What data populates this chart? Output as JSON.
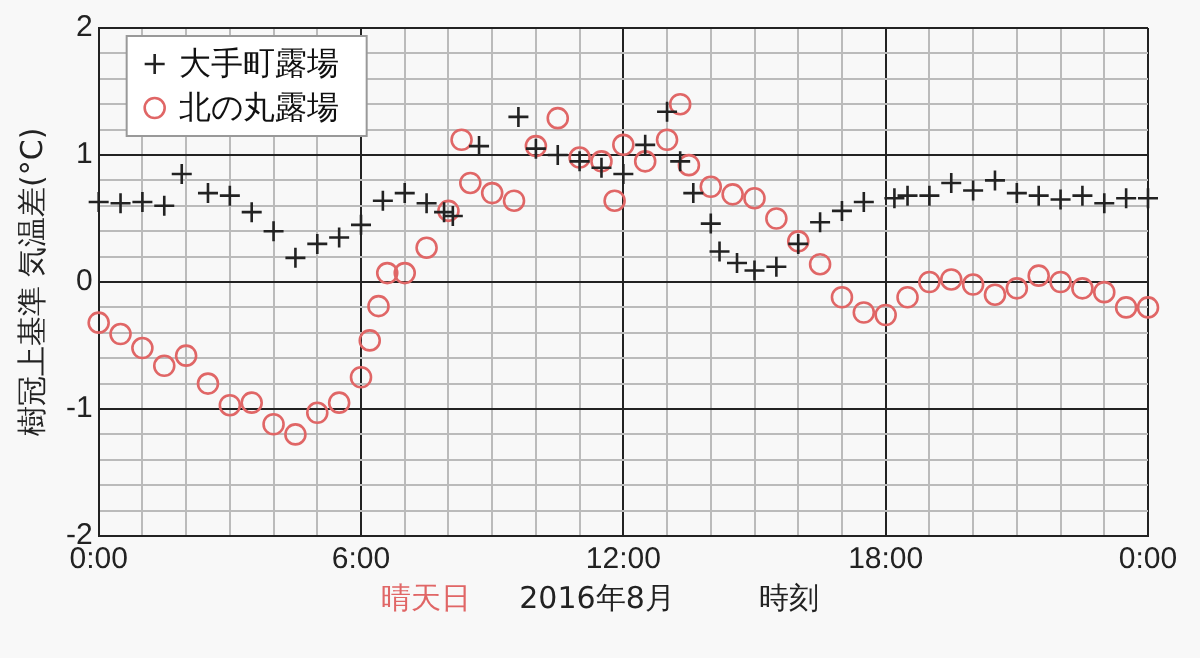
{
  "chart_data": {
    "type": "scatter",
    "ylabel": "樹冠上基準 気温差(°C)",
    "xlabel": "時刻",
    "annotations": [
      "晴天日",
      "2016年8月"
    ],
    "xlim": [
      0,
      24
    ],
    "ylim": [
      -2,
      2
    ],
    "xticks": [
      {
        "value": 0,
        "label": "0:00"
      },
      {
        "value": 1,
        "label": null
      },
      {
        "value": 2,
        "label": null
      },
      {
        "value": 3,
        "label": null
      },
      {
        "value": 4,
        "label": null
      },
      {
        "value": 5,
        "label": null
      },
      {
        "value": 6,
        "label": "6:00"
      },
      {
        "value": 7,
        "label": null
      },
      {
        "value": 8,
        "label": null
      },
      {
        "value": 9,
        "label": null
      },
      {
        "value": 10,
        "label": null
      },
      {
        "value": 11,
        "label": null
      },
      {
        "value": 12,
        "label": "12:00"
      },
      {
        "value": 13,
        "label": null
      },
      {
        "value": 14,
        "label": null
      },
      {
        "value": 15,
        "label": null
      },
      {
        "value": 16,
        "label": null
      },
      {
        "value": 17,
        "label": null
      },
      {
        "value": 18,
        "label": "18:00"
      },
      {
        "value": 19,
        "label": null
      },
      {
        "value": 20,
        "label": null
      },
      {
        "value": 21,
        "label": null
      },
      {
        "value": 22,
        "label": null
      },
      {
        "value": 23,
        "label": null
      },
      {
        "value": 24,
        "label": "0:00"
      }
    ],
    "yticks": [
      -2,
      {
        "value": -1.8,
        "label": null
      },
      {
        "value": -1.6,
        "label": null
      },
      {
        "value": -1.4,
        "label": null
      },
      {
        "value": -1.2,
        "label": null
      },
      -1,
      {
        "value": -0.8,
        "label": null
      },
      {
        "value": -0.6,
        "label": null
      },
      {
        "value": -0.4,
        "label": null
      },
      {
        "value": -0.2,
        "label": null
      },
      0,
      {
        "value": 0.2,
        "label": null
      },
      {
        "value": 0.4,
        "label": null
      },
      {
        "value": 0.6,
        "label": null
      },
      {
        "value": 0.8,
        "label": null
      },
      1,
      {
        "value": 1.2,
        "label": null
      },
      {
        "value": 1.4,
        "label": null
      },
      {
        "value": 1.6,
        "label": null
      },
      {
        "value": 1.8,
        "label": null
      },
      2
    ],
    "grid": true,
    "legend": "top left",
    "series": [
      {
        "name": "大手町露場",
        "color": "#222222",
        "marker": "cross",
        "x": [
          0,
          0.5,
          1,
          1.5,
          1.9,
          2.5,
          3,
          3.5,
          4,
          4.5,
          5,
          5.5,
          6,
          6.5,
          7,
          7.5,
          7.9,
          8.1,
          8.7,
          9.6,
          10,
          10.5,
          11,
          11.5,
          12,
          12.5,
          13,
          13.3,
          13.6,
          14,
          14.2,
          14.6,
          15,
          15.5,
          16,
          16.5,
          17,
          17.5,
          18.2,
          18.5,
          19,
          19.5,
          20,
          20.5,
          21,
          21.5,
          22,
          22.5,
          23,
          23.5,
          24
        ],
        "values": [
          0.63,
          0.62,
          0.63,
          0.6,
          0.85,
          0.7,
          0.68,
          0.55,
          0.4,
          0.19,
          0.3,
          0.35,
          0.45,
          0.64,
          0.7,
          0.62,
          0.55,
          0.52,
          1.07,
          1.3,
          1.05,
          1.0,
          0.95,
          0.9,
          0.85,
          1.08,
          1.34,
          0.95,
          0.7,
          0.46,
          0.24,
          0.15,
          0.09,
          0.12,
          0.3,
          0.47,
          0.56,
          0.63,
          0.66,
          0.68,
          0.68,
          0.78,
          0.72,
          0.8,
          0.7,
          0.68,
          0.65,
          0.68,
          0.62,
          0.66,
          0.66
        ]
      },
      {
        "name": "北の丸露場",
        "color": "#e06666",
        "marker": "circle",
        "x": [
          0,
          0.5,
          1,
          1.5,
          2,
          2.5,
          3,
          3.5,
          4,
          4.5,
          5,
          5.5,
          6,
          6.2,
          6.4,
          6.6,
          7,
          7.5,
          8,
          8.3,
          8.5,
          9,
          9.5,
          10,
          10.5,
          11,
          11.5,
          11.8,
          12,
          12.5,
          13,
          13.3,
          13.5,
          14,
          14.5,
          15,
          15.5,
          16,
          16.5,
          17,
          17.5,
          18,
          18.5,
          19,
          19.5,
          20,
          20.5,
          21,
          21.5,
          22,
          22.5,
          23,
          23.5,
          24
        ],
        "values": [
          -0.32,
          -0.41,
          -0.52,
          -0.66,
          -0.58,
          -0.8,
          -0.97,
          -0.95,
          -1.12,
          -1.2,
          -1.03,
          -0.95,
          -0.75,
          -0.46,
          -0.19,
          0.07,
          0.07,
          0.27,
          0.56,
          1.12,
          0.78,
          0.7,
          0.64,
          1.07,
          1.29,
          0.98,
          0.95,
          0.64,
          1.08,
          0.95,
          1.12,
          1.4,
          0.92,
          0.75,
          0.69,
          0.66,
          0.5,
          0.32,
          0.14,
          -0.12,
          -0.24,
          -0.26,
          -0.12,
          0.0,
          0.02,
          -0.02,
          -0.1,
          -0.05,
          0.05,
          0.0,
          -0.05,
          -0.08,
          -0.2,
          -0.2
        ]
      }
    ]
  }
}
